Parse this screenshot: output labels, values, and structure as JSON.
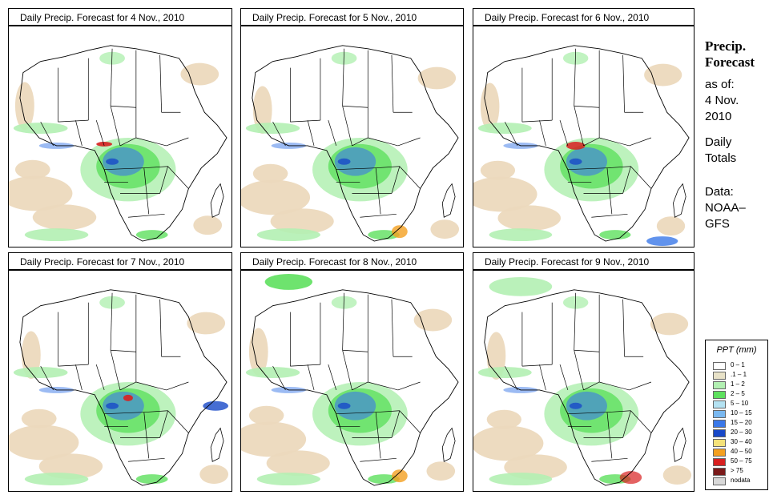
{
  "panels": [
    {
      "title": "Daily Precip. Forecast for  4 Nov., 2010"
    },
    {
      "title": "Daily Precip. Forecast for  5 Nov., 2010"
    },
    {
      "title": "Daily Precip. Forecast for  6 Nov., 2010"
    },
    {
      "title": "Daily Precip. Forecast for  7 Nov., 2010"
    },
    {
      "title": "Daily Precip. Forecast for  8 Nov., 2010"
    },
    {
      "title": "Daily Precip. Forecast for  9 Nov., 2010"
    }
  ],
  "sidebar": {
    "title_line1": "Precip.",
    "title_line2": "Forecast",
    "asof_line1": "as of:",
    "asof_line2": "4 Nov.",
    "asof_line3": "2010",
    "daily_line1": "Daily",
    "daily_line2": "Totals",
    "data_line1": "Data:",
    "data_line2": "NOAA–",
    "data_line3": "GFS"
  },
  "legend": {
    "title": "PPT (mm)",
    "items": [
      {
        "label": "0 – 1",
        "color": "#ffffff"
      },
      {
        "label": ".1 – 1",
        "color": "#e8e2c8"
      },
      {
        "label": "1 – 2",
        "color": "#b2f0b2"
      },
      {
        "label": "2 – 5",
        "color": "#5ee05e"
      },
      {
        "label": "5 – 10",
        "color": "#b4e2f2"
      },
      {
        "label": "10 – 15",
        "color": "#7ab8f0"
      },
      {
        "label": "15 – 20",
        "color": "#3a78e8"
      },
      {
        "label": "20 – 30",
        "color": "#1848c8"
      },
      {
        "label": "30 – 40",
        "color": "#f4e27a"
      },
      {
        "label": "40 – 50",
        "color": "#f4a020"
      },
      {
        "label": "50 – 75",
        "color": "#d82020"
      },
      {
        "label": "> 75",
        "color": "#7a1a1a"
      },
      {
        "label": "nodata",
        "color": "#d8d8d8"
      }
    ]
  },
  "colors": {
    "ocean_tan": "#ecd9bd",
    "light_green": "#b2f0b2",
    "green": "#5ee05e",
    "blue": "#3a78e8",
    "dark_blue": "#1848c8",
    "red": "#d82020",
    "orange": "#f4a020"
  }
}
